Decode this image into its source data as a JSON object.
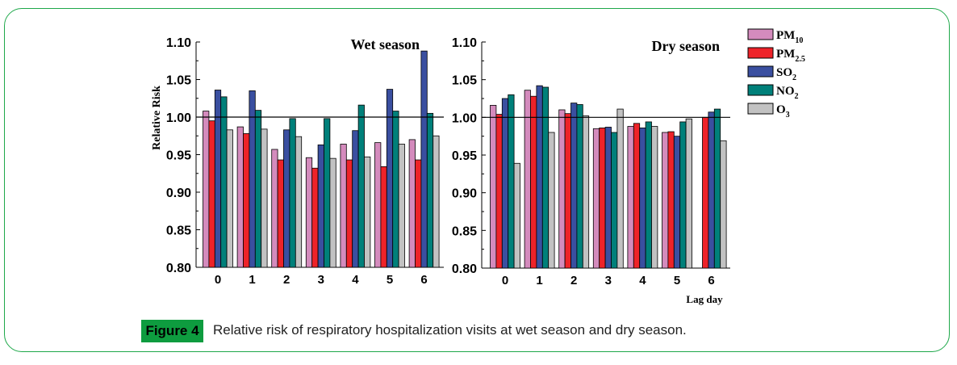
{
  "chart_data": [
    {
      "type": "bar",
      "title": "Wet season",
      "ylabel": "Relative Risk",
      "xlabel": "Lag day",
      "ylim": [
        0.8,
        1.1
      ],
      "yticks": [
        "0.80",
        "0.85",
        "0.90",
        "0.95",
        "1.00",
        "1.05",
        "1.10"
      ],
      "reference_line": 1.0,
      "categories": [
        "0",
        "1",
        "2",
        "3",
        "4",
        "5",
        "6"
      ],
      "series": [
        {
          "name": "PM10",
          "values": [
            1.008,
            0.987,
            0.957,
            0.946,
            0.964,
            0.966,
            0.97
          ]
        },
        {
          "name": "PM2.5",
          "values": [
            0.995,
            0.978,
            0.943,
            0.932,
            0.943,
            0.934,
            0.943
          ]
        },
        {
          "name": "SO2",
          "values": [
            1.036,
            1.035,
            0.983,
            0.963,
            0.982,
            1.037,
            1.088
          ]
        },
        {
          "name": "NO2",
          "values": [
            1.027,
            1.009,
            0.998,
            0.998,
            1.016,
            1.008,
            1.005
          ]
        },
        {
          "name": "O3",
          "values": [
            0.983,
            0.984,
            0.974,
            0.945,
            0.947,
            0.964,
            0.975
          ]
        }
      ]
    },
    {
      "type": "bar",
      "title": "Dry season",
      "xlabel": "Lag day",
      "ylim": [
        0.8,
        1.1
      ],
      "yticks": [
        "0.80",
        "0.85",
        "0.90",
        "0.95",
        "1.00",
        "1.05",
        "1.10"
      ],
      "reference_line": 1.0,
      "categories": [
        "0",
        "1",
        "2",
        "3",
        "4",
        "5",
        "6"
      ],
      "series": [
        {
          "name": "PM10",
          "values": [
            1.016,
            1.036,
            1.01,
            0.985,
            0.988,
            0.98,
            null
          ]
        },
        {
          "name": "PM2.5",
          "values": [
            1.004,
            1.028,
            1.005,
            0.986,
            0.992,
            0.981,
            1.0
          ]
        },
        {
          "name": "SO2",
          "values": [
            1.025,
            1.042,
            1.019,
            0.987,
            0.986,
            0.975,
            1.007
          ]
        },
        {
          "name": "NO2",
          "values": [
            1.03,
            1.04,
            1.017,
            0.98,
            0.994,
            0.994,
            1.011
          ]
        },
        {
          "name": "O3",
          "values": [
            0.939,
            0.98,
            1.002,
            1.011,
            0.988,
            0.998,
            0.969
          ]
        }
      ]
    }
  ],
  "legend": [
    {
      "base": "PM",
      "sub": "10",
      "color": "#d48bbd"
    },
    {
      "base": "PM",
      "sub": "2.5",
      "color": "#ee2329"
    },
    {
      "base": "SO",
      "sub": "2",
      "color": "#3a4fa0"
    },
    {
      "base": "NO",
      "sub": "2",
      "color": "#00807a"
    },
    {
      "base": "O",
      "sub": "3",
      "color": "#c2c2c2"
    }
  ],
  "caption": {
    "label": "Figure 4",
    "text": "Relative risk of respiratory hospitalization visits at wet season and dry season."
  },
  "colors": {
    "frame": "#1ea84a",
    "badge": "#0e9c3f"
  }
}
